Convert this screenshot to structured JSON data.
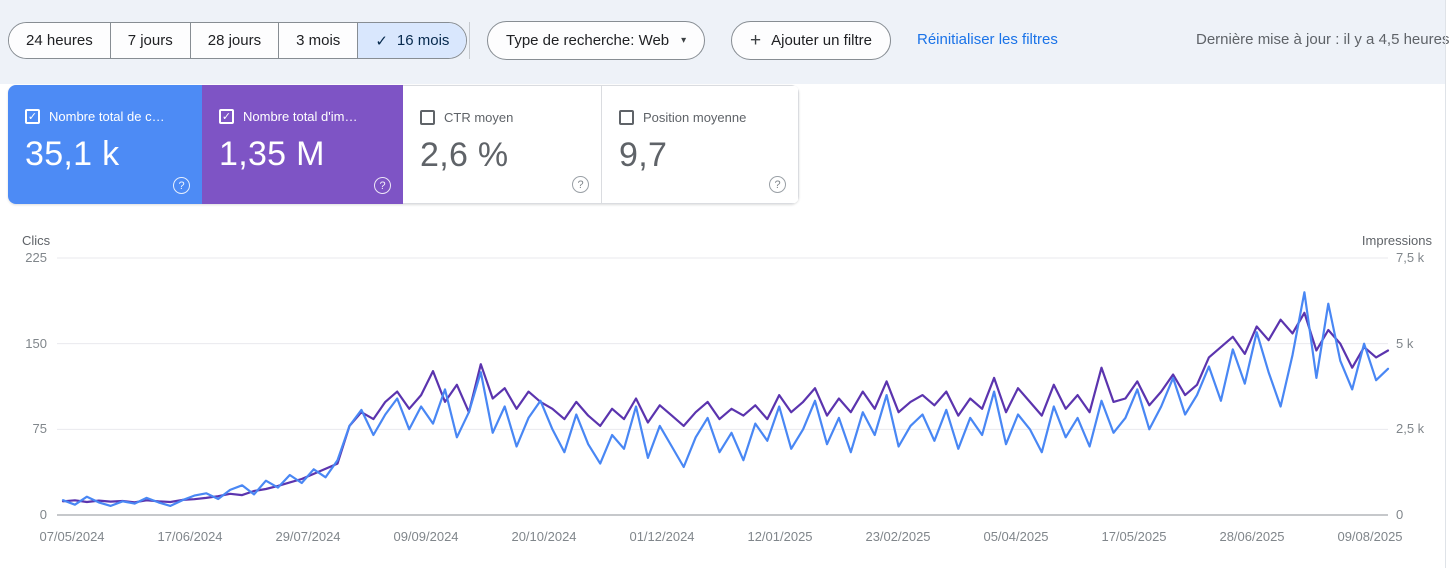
{
  "filter_bar": {
    "check_icon": "✓",
    "date_ranges": [
      {
        "label": "24 heures",
        "selected": false
      },
      {
        "label": "7 jours",
        "selected": false
      },
      {
        "label": "28 jours",
        "selected": false
      },
      {
        "label": "3 mois",
        "selected": false
      },
      {
        "label": "16 mois",
        "selected": true
      }
    ],
    "search_type": {
      "label": "Type de recherche: Web",
      "caret_icon": "▾"
    },
    "add_filter": {
      "label": "Ajouter un filtre",
      "plus_icon": "+"
    },
    "reset_link": "Réinitialiser les filtres",
    "last_update": "Dernière mise à jour : il y a 4,5 heures"
  },
  "metric_cards": [
    {
      "label": "Nombre total de c…",
      "value": "35,1 k",
      "checked": true,
      "color": "#4d8bf5",
      "help_icon": "?"
    },
    {
      "label": "Nombre total d'im…",
      "value": "1,35 M",
      "checked": true,
      "color": "#7e54c5",
      "help_icon": "?"
    },
    {
      "label": "CTR moyen",
      "value": "2,6 %",
      "checked": false,
      "color": "#ffffff",
      "help_icon": "?"
    },
    {
      "label": "Position moyenne",
      "value": "9,7",
      "checked": false,
      "color": "#ffffff",
      "help_icon": "?"
    }
  ],
  "chart": {
    "left_axis": {
      "title": "Clics",
      "ticks": [
        "225",
        "150",
        "75",
        "0"
      ]
    },
    "right_axis": {
      "title": "Impressions",
      "ticks": [
        "7,5 k",
        "5 k",
        "2,5 k",
        "0"
      ]
    },
    "x_ticks": [
      "07/05/2024",
      "17/06/2024",
      "29/07/2024",
      "09/09/2024",
      "20/10/2024",
      "01/12/2024",
      "12/01/2025",
      "23/02/2025",
      "05/04/2025",
      "17/05/2025",
      "28/06/2025",
      "09/08/2025"
    ]
  },
  "chart_data": {
    "type": "line",
    "title": "",
    "x_range": [
      "07/05/2024",
      "09/2025"
    ],
    "x_tick_labels": [
      "07/05/2024",
      "17/06/2024",
      "29/07/2024",
      "09/09/2024",
      "20/10/2024",
      "01/12/2024",
      "12/01/2025",
      "23/02/2025",
      "05/04/2025",
      "17/05/2025",
      "28/06/2025",
      "09/08/2025"
    ],
    "left_ylim": [
      0,
      225
    ],
    "right_ylim": [
      0,
      7500
    ],
    "grid": true,
    "legend_position": "none",
    "note": "daily series over 16 months, sampled approximately every 4 days",
    "series": [
      {
        "name": "Impressions",
        "axis": "right",
        "color": "#5b34ae",
        "values": [
          400,
          430,
          380,
          420,
          390,
          410,
          370,
          430,
          400,
          380,
          440,
          460,
          500,
          550,
          620,
          580,
          700,
          760,
          850,
          950,
          1050,
          1200,
          1350,
          1500,
          2600,
          3000,
          2800,
          3300,
          3600,
          3100,
          3500,
          4200,
          3300,
          3800,
          3000,
          4400,
          3400,
          3700,
          3100,
          3600,
          3300,
          3100,
          2800,
          3300,
          2900,
          2600,
          3100,
          2800,
          3400,
          2700,
          3200,
          2900,
          2600,
          3000,
          3300,
          2800,
          3100,
          2900,
          3200,
          2800,
          3500,
          3000,
          3300,
          3700,
          2900,
          3400,
          3000,
          3600,
          3100,
          3900,
          3000,
          3300,
          3500,
          3200,
          3600,
          2900,
          3400,
          3100,
          4000,
          3000,
          3700,
          3300,
          2900,
          3800,
          3100,
          3500,
          3000,
          4300,
          3300,
          3400,
          3900,
          3200,
          3600,
          4100,
          3500,
          3800,
          4600,
          4900,
          5200,
          4700,
          5500,
          5100,
          5700,
          5300,
          5900,
          4800,
          5400,
          5000,
          4300,
          4900,
          4600,
          4800
        ]
      },
      {
        "name": "Clics",
        "axis": "left",
        "color": "#4987f4",
        "values": [
          13,
          9,
          16,
          11,
          8,
          12,
          10,
          15,
          11,
          8,
          13,
          17,
          19,
          14,
          22,
          26,
          18,
          30,
          24,
          35,
          28,
          40,
          33,
          48,
          78,
          92,
          70,
          88,
          102,
          75,
          95,
          80,
          110,
          68,
          90,
          125,
          72,
          95,
          60,
          85,
          100,
          75,
          55,
          88,
          62,
          45,
          70,
          58,
          95,
          50,
          78,
          60,
          42,
          68,
          85,
          55,
          72,
          48,
          80,
          65,
          95,
          58,
          75,
          100,
          62,
          85,
          55,
          90,
          70,
          105,
          60,
          78,
          88,
          65,
          92,
          58,
          85,
          70,
          108,
          62,
          88,
          75,
          55,
          95,
          68,
          85,
          60,
          100,
          72,
          85,
          110,
          75,
          95,
          120,
          88,
          105,
          130,
          100,
          145,
          115,
          160,
          125,
          95,
          140,
          195,
          120,
          185,
          135,
          110,
          150,
          118,
          128
        ]
      }
    ]
  },
  "colors": {
    "filter_bar_bg": "#eef2f8",
    "selected_chip_bg": "#d9e7fd",
    "link_blue": "#1a73e8",
    "clicks_card": "#4d8bf5",
    "impressions_card": "#7e54c5",
    "clicks_line": "#4987f4",
    "impressions_line": "#5b34ae"
  }
}
